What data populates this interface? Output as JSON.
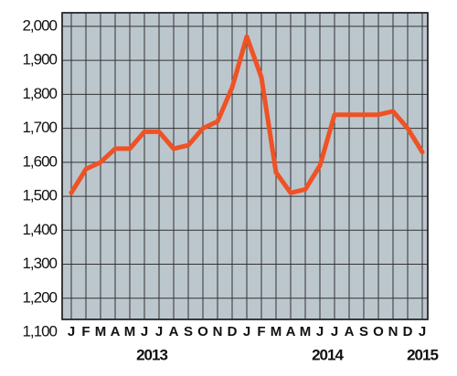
{
  "chart_data": {
    "type": "line",
    "categories": [
      "J",
      "F",
      "M",
      "A",
      "M",
      "J",
      "J",
      "A",
      "S",
      "O",
      "N",
      "D",
      "J",
      "F",
      "M",
      "A",
      "M",
      "J",
      "J",
      "A",
      "S",
      "O",
      "N",
      "D",
      "J"
    ],
    "year_labels": [
      "2013",
      "2014",
      "2015"
    ],
    "series": [
      {
        "color": "#ee5225",
        "values": [
          1510,
          1580,
          1600,
          1640,
          1640,
          1690,
          1690,
          1640,
          1650,
          1700,
          1720,
          1820,
          1970,
          1850,
          1570,
          1510,
          1520,
          1590,
          1740,
          1740,
          1740,
          1740,
          1750,
          1700,
          1630
        ]
      }
    ],
    "ylim": [
      1100,
      2040
    ],
    "yticks": [
      {
        "value": 1100,
        "label": "1,100"
      },
      {
        "value": 1200,
        "label": "1,200"
      },
      {
        "value": 1300,
        "label": "1,300"
      },
      {
        "value": 1400,
        "label": "1,400"
      },
      {
        "value": 1500,
        "label": "1,500"
      },
      {
        "value": 1600,
        "label": "1,600"
      },
      {
        "value": 1700,
        "label": "1,700"
      },
      {
        "value": 1800,
        "label": "1,800"
      },
      {
        "value": 1900,
        "label": "1,900"
      },
      {
        "value": 2000,
        "label": "2,000"
      }
    ],
    "grid": true
  }
}
